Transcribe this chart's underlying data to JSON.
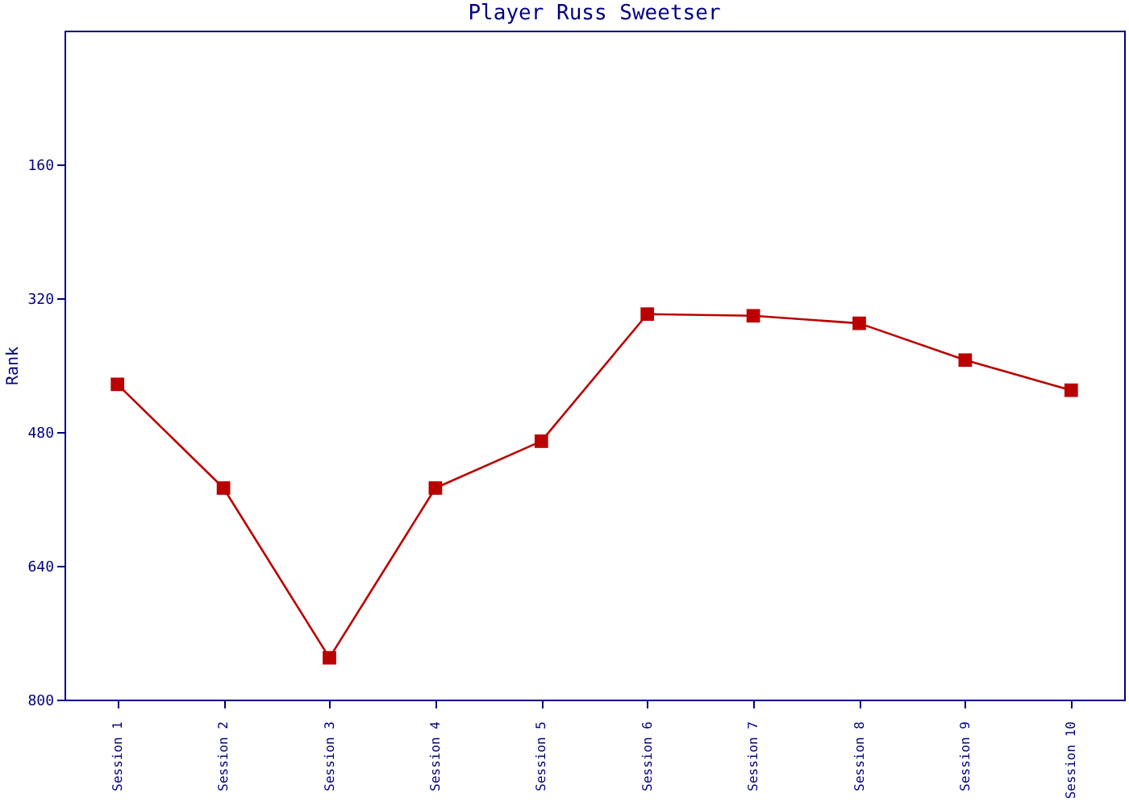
{
  "chart_data": {
    "type": "line",
    "title": "Player Russ Sweetser",
    "ylabel": "Rank",
    "categories": [
      "Session 1",
      "Session 2",
      "Session 3",
      "Session 4",
      "Session 5",
      "Session 6",
      "Session 7",
      "Session 8",
      "Session 9",
      "Session 10"
    ],
    "series": [
      {
        "color": "#bb0000",
        "values": [
          423,
          547,
          750,
          547,
          491,
          339,
          341,
          350,
          394,
          430
        ]
      }
    ],
    "ylim": [
      800,
      0
    ],
    "yticks": [
      160,
      320,
      480,
      640,
      800
    ],
    "grid": false,
    "marker": "square",
    "line_style": "solid"
  }
}
